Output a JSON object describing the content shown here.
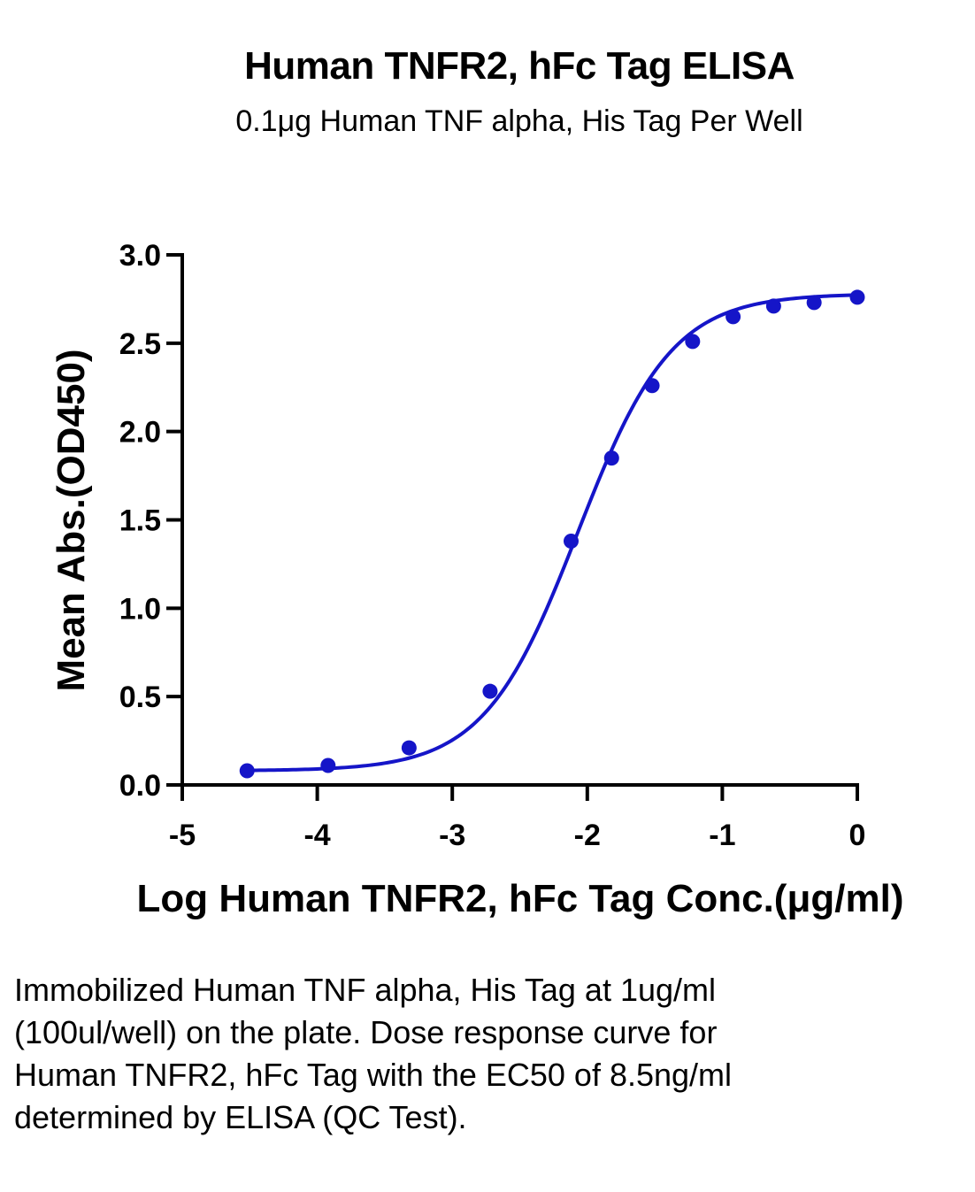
{
  "chart_data": {
    "type": "scatter",
    "title": "Human TNFR2, hFc Tag ELISA",
    "subtitle": "0.1μg Human TNF alpha, His Tag Per Well",
    "xlabel": "Log Human TNFR2, hFc Tag Conc.(μg/ml)",
    "ylabel": "Mean Abs.(OD450)",
    "xlim": [
      -5,
      0
    ],
    "ylim": [
      0,
      3
    ],
    "x_ticks": [
      "-5",
      "-4",
      "-3",
      "-2",
      "-1",
      "0"
    ],
    "y_ticks": [
      "0.0",
      "0.5",
      "1.0",
      "1.5",
      "2.0",
      "2.5",
      "3.0"
    ],
    "grid": false,
    "series_color": "#1515c8",
    "points": [
      {
        "x": -4.52,
        "y": 0.08
      },
      {
        "x": -3.92,
        "y": 0.11
      },
      {
        "x": -3.32,
        "y": 0.21
      },
      {
        "x": -2.72,
        "y": 0.53
      },
      {
        "x": -2.12,
        "y": 1.38
      },
      {
        "x": -1.82,
        "y": 1.85
      },
      {
        "x": -1.52,
        "y": 2.26
      },
      {
        "x": -1.22,
        "y": 2.51
      },
      {
        "x": -0.92,
        "y": 2.65
      },
      {
        "x": -0.62,
        "y": 2.71
      },
      {
        "x": -0.32,
        "y": 2.73
      },
      {
        "x": 0.0,
        "y": 2.76
      }
    ],
    "fit_curve": {
      "model": "4PL",
      "bottom": 0.08,
      "top": 2.78,
      "log_ec50": -2.07,
      "hill_slope": 1.25
    }
  },
  "caption": "Immobilized Human TNF alpha, His Tag at 1ug/ml (100ul/well) on the plate. Dose response curve for Human TNFR2, hFc Tag with the EC50 of 8.5ng/ml determined by ELISA (QC Test)."
}
